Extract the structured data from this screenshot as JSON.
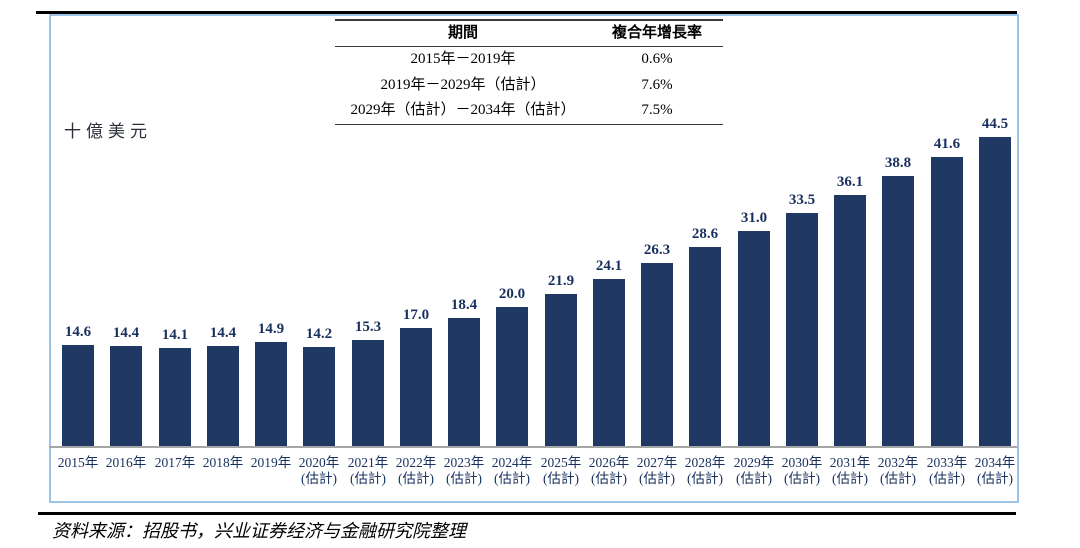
{
  "figure": {
    "unit_label": "十億美元",
    "source_text": "资料来源：招股书，兴业证券经济与金融研究院整理"
  },
  "cagr_table": {
    "headers": [
      "期間",
      "複合年增長率"
    ],
    "rows": [
      {
        "period": "2015年－2019年",
        "cagr": "0.6%"
      },
      {
        "period": "2019年－2029年（估計）",
        "cagr": "7.6%"
      },
      {
        "period": "2029年（估計）－2034年（估計）",
        "cagr": "7.5%"
      }
    ]
  },
  "chart_data": {
    "type": "bar",
    "title": "",
    "ylabel": "十億美元",
    "xlabel": "",
    "categories": [
      "2015年",
      "2016年",
      "2017年",
      "2018年",
      "2019年",
      "2020年",
      "2021年",
      "2022年",
      "2023年",
      "2024年",
      "2025年",
      "2026年",
      "2027年",
      "2028年",
      "2029年",
      "2030年",
      "2031年",
      "2032年",
      "2033年",
      "2034年"
    ],
    "estimate_flags": [
      false,
      false,
      false,
      false,
      false,
      true,
      true,
      true,
      true,
      true,
      true,
      true,
      true,
      true,
      true,
      true,
      true,
      true,
      true,
      true
    ],
    "estimate_label": "(估計)",
    "values": [
      14.6,
      14.4,
      14.1,
      14.4,
      14.9,
      14.2,
      15.3,
      17.0,
      18.4,
      20.0,
      21.9,
      24.1,
      26.3,
      28.6,
      31.0,
      33.5,
      36.1,
      38.8,
      41.6,
      44.5
    ],
    "value_labels_shown": true,
    "bar_color": "#1f3864",
    "axis_color": "#a6a6a6",
    "box_border_color": "#9dc3e6",
    "ylim": [
      0,
      48
    ],
    "grid": false,
    "legend": null
  }
}
